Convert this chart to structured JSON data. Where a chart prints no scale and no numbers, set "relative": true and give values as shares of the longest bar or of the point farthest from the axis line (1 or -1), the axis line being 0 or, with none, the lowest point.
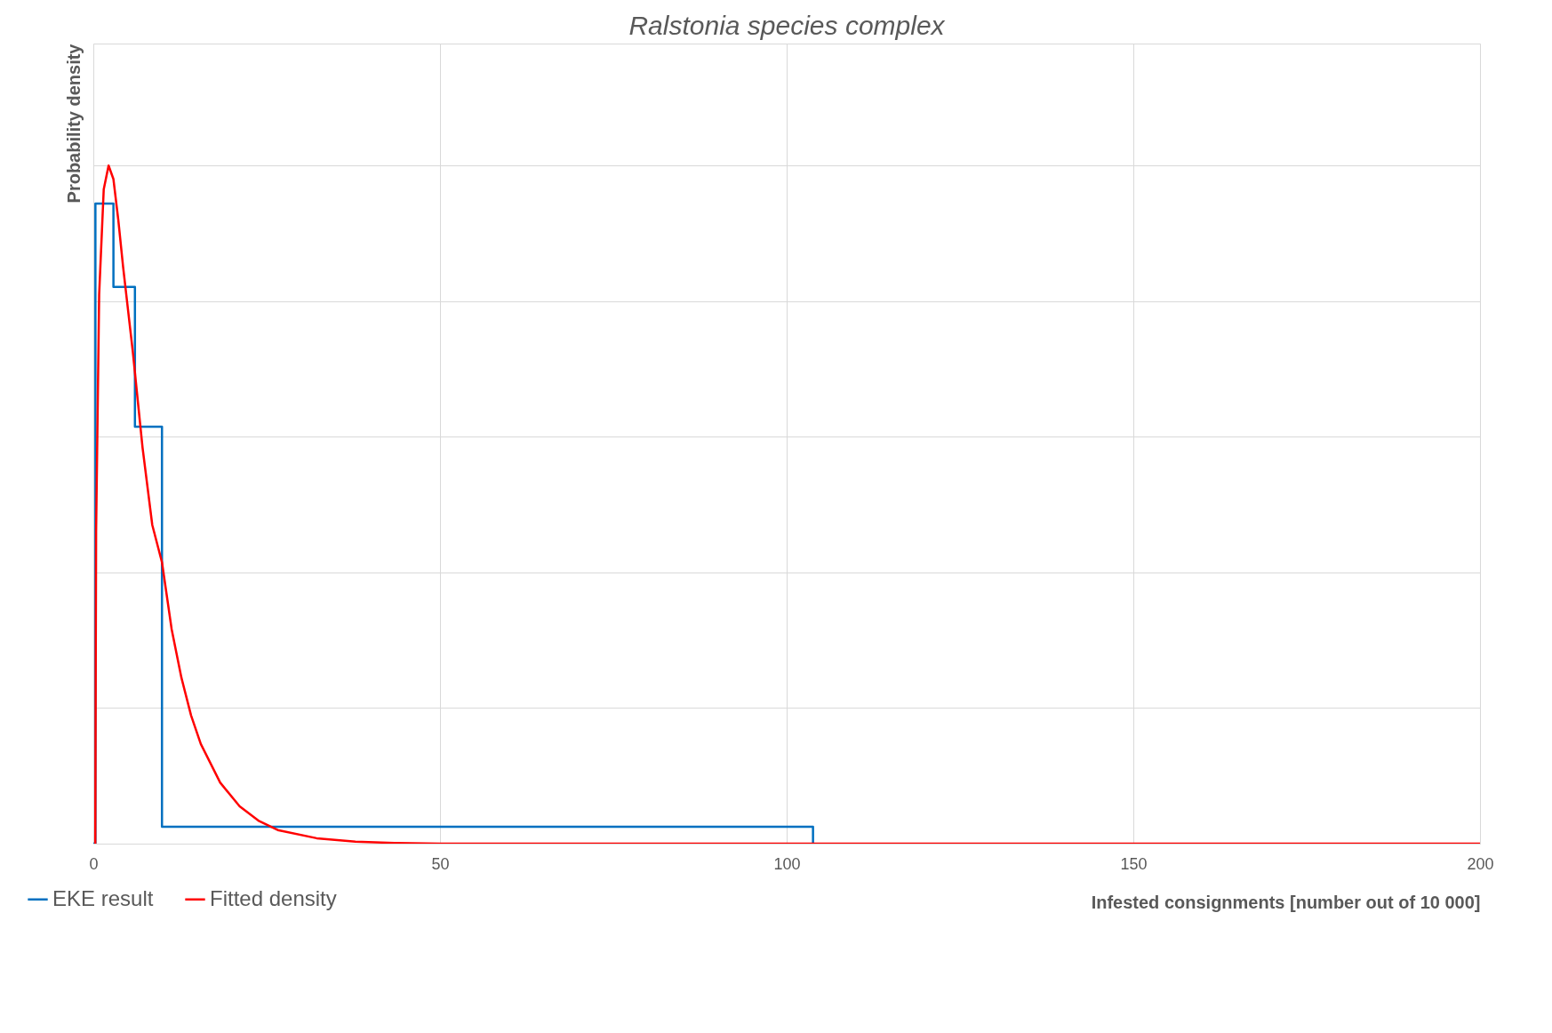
{
  "chart_data": {
    "type": "line",
    "title": "Ralstonia species complex",
    "xlabel": "Infested consignments [number out of 10 000]",
    "ylabel": "Probability density",
    "relative": true,
    "xlim": [
      0,
      200
    ],
    "xticks": [
      0,
      50,
      100,
      150,
      200
    ],
    "grid": true,
    "legend": "bottom left",
    "series": [
      {
        "name": "EKE result",
        "type": "step",
        "color": "#0070c0",
        "x": [
          0,
          0.3,
          2.9,
          6.0,
          9.9,
          103.8,
          103.8
        ],
        "values": [
          0,
          0.944,
          0.821,
          0.615,
          0.025,
          0,
          0
        ]
      },
      {
        "name": "Fitted density",
        "type": "line",
        "color": "#ff0000",
        "x": [
          0.28,
          0.4,
          0.84,
          1.5,
          2.2,
          2.9,
          3.6,
          4.3,
          5.7,
          7.1,
          8.5,
          9.9,
          11.3,
          12.7,
          14.1,
          15.5,
          18.3,
          21.1,
          23.8,
          26.6,
          32.2,
          37.8,
          43.4,
          50,
          100,
          150,
          200
        ],
        "values": [
          0,
          0.46,
          0.81,
          0.965,
          1,
          0.98,
          0.92,
          0.85,
          0.725,
          0.584,
          0.47,
          0.415,
          0.316,
          0.245,
          0.189,
          0.147,
          0.09,
          0.055,
          0.034,
          0.02,
          0.008,
          0.003,
          0.001,
          0,
          0,
          0,
          0
        ]
      }
    ]
  }
}
